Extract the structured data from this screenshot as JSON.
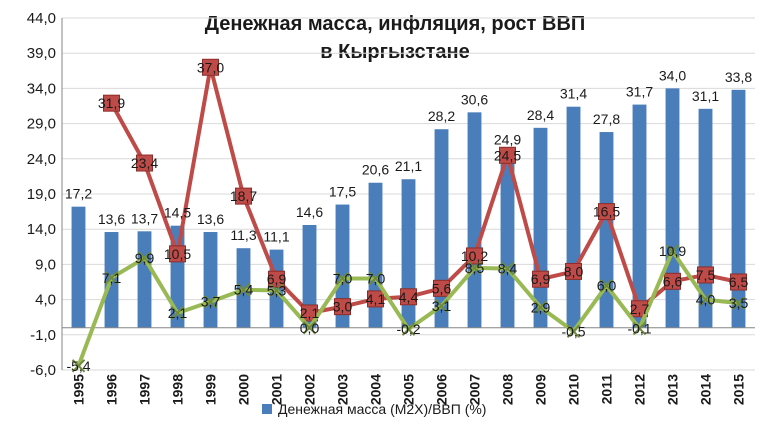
{
  "chart_data": {
    "type": "bar",
    "title_lines": [
      "Денежная масса, инфляция,  рост ВВП",
      "в Кыргызстане"
    ],
    "categories": [
      "1995",
      "1996",
      "1997",
      "1998",
      "1999",
      "2000",
      "2001",
      "2002",
      "2003",
      "2004",
      "2005",
      "2006",
      "2007",
      "2008",
      "2009",
      "2010",
      "2011",
      "2012",
      "2013",
      "2014",
      "2015"
    ],
    "ylim": [
      -6.0,
      44.0
    ],
    "y_ticks": [
      "-6,0",
      "-1,0",
      "4,0",
      "9,0",
      "14,0",
      "19,0",
      "24,0",
      "29,0",
      "34,0",
      "39,0",
      "44,0"
    ],
    "y_tick_values": [
      -6,
      -1,
      4,
      9,
      14,
      19,
      24,
      29,
      34,
      39,
      44
    ],
    "grid": true,
    "legend_position": "bottom",
    "series": [
      {
        "name": "Денежная масса (M2X)/ВВП (%)",
        "type": "bar",
        "color": "#4a7ebb",
        "values": [
          17.2,
          13.6,
          13.7,
          14.5,
          13.6,
          11.3,
          11.1,
          14.6,
          17.5,
          20.6,
          21.1,
          28.2,
          30.6,
          24.9,
          28.4,
          31.4,
          27.8,
          31.7,
          34.0,
          31.1,
          33.8
        ],
        "labels": [
          "17,2",
          "13,6",
          "13,7",
          "14,5",
          "13,6",
          "11,3",
          "11,1",
          "14,6",
          "17,5",
          "20,6",
          "21,1",
          "28,2",
          "30,6",
          "24,9",
          "28,4",
          "31,4",
          "27,8",
          "31,7",
          "34,0",
          "31,1",
          "33,8"
        ]
      },
      {
        "type": "line",
        "color": "#be4b48",
        "marker": "square",
        "values": [
          null,
          31.9,
          23.4,
          10.5,
          37.0,
          18.7,
          6.9,
          2.1,
          3.0,
          4.1,
          4.4,
          5.6,
          10.2,
          24.5,
          6.9,
          8.0,
          16.5,
          2.7,
          6.6,
          7.5,
          6.5
        ],
        "labels": [
          null,
          "31,9",
          "23,4",
          "10,5",
          "37,0",
          "18,7",
          "6,9",
          "2,1",
          "3,0",
          "4,1",
          "4,4",
          "5,6",
          "10,2",
          "24,5",
          "6,9",
          "8,0",
          "16,5",
          "2,7",
          "6,6",
          "7,5",
          "6,5"
        ]
      },
      {
        "type": "line",
        "color": "#98b954",
        "marker": "x",
        "values": [
          -5.4,
          7.1,
          9.9,
          2.1,
          3.7,
          5.4,
          5.3,
          0.0,
          7.0,
          7.0,
          -0.2,
          3.1,
          8.5,
          8.4,
          2.9,
          -0.5,
          6.0,
          -0.1,
          10.9,
          4.0,
          3.5
        ],
        "labels": [
          "-5,4",
          "7,1",
          "9,9",
          "2,1",
          "3,7",
          "5,4",
          "5,3",
          "0,0",
          "7,0",
          "7,0",
          "-0,2",
          "3,1",
          "8,5",
          "8,4",
          "2,9",
          "-0,5",
          "6,0",
          "-0,1",
          "10,9",
          "4,0",
          "3,5"
        ]
      }
    ]
  }
}
